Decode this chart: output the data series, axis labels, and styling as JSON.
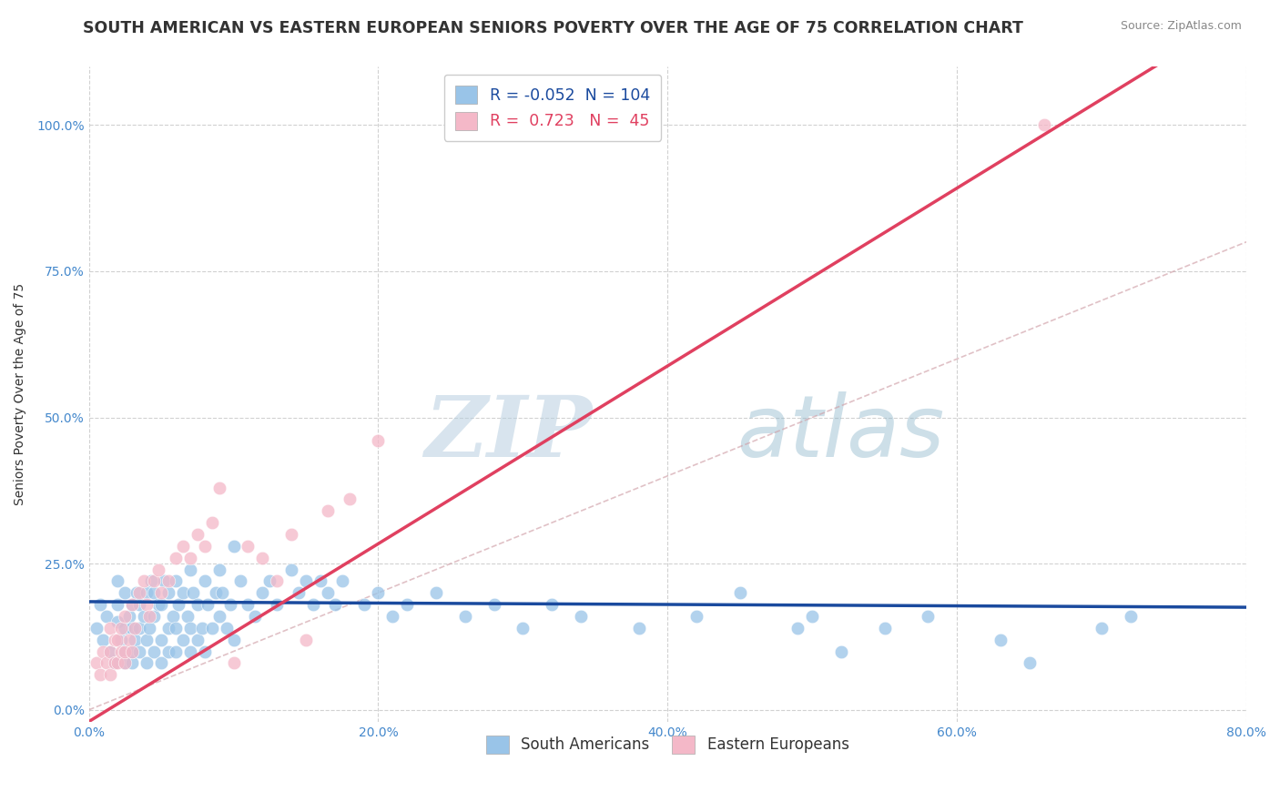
{
  "title": "SOUTH AMERICAN VS EASTERN EUROPEAN SENIORS POVERTY OVER THE AGE OF 75 CORRELATION CHART",
  "source": "Source: ZipAtlas.com",
  "ylabel": "Seniors Poverty Over the Age of 75",
  "xlim": [
    0.0,
    0.8
  ],
  "ylim": [
    -0.02,
    1.1
  ],
  "xticks": [
    0.0,
    0.2,
    0.4,
    0.6,
    0.8
  ],
  "xticklabels": [
    "0.0%",
    "20.0%",
    "40.0%",
    "60.0%",
    "80.0%"
  ],
  "yticks": [
    0.0,
    0.25,
    0.5,
    0.75,
    1.0
  ],
  "yticklabels": [
    "0.0%",
    "25.0%",
    "50.0%",
    "75.0%",
    "100.0%"
  ],
  "blue_color": "#99c4e8",
  "pink_color": "#f4b8c8",
  "blue_line_color": "#1a4a9e",
  "pink_line_color": "#e04060",
  "R_blue": -0.052,
  "N_blue": 104,
  "R_pink": 0.723,
  "N_pink": 45,
  "legend_labels": [
    "South Americans",
    "Eastern Europeans"
  ],
  "watermark_zip": "ZIP",
  "watermark_atlas": "atlas",
  "background_color": "#ffffff",
  "grid_color": "#cccccc",
  "title_fontsize": 12.5,
  "axis_label_fontsize": 10,
  "tick_fontsize": 10,
  "tick_color": "#4488cc",
  "blue_line_intercept": 0.185,
  "blue_line_slope": -0.012,
  "pink_line_intercept": -0.02,
  "pink_line_slope": 1.52,
  "blue_scatter_x": [
    0.005,
    0.008,
    0.01,
    0.012,
    0.015,
    0.018,
    0.02,
    0.02,
    0.02,
    0.022,
    0.025,
    0.025,
    0.025,
    0.025,
    0.028,
    0.03,
    0.03,
    0.03,
    0.03,
    0.032,
    0.033,
    0.035,
    0.035,
    0.035,
    0.038,
    0.04,
    0.04,
    0.04,
    0.042,
    0.043,
    0.045,
    0.045,
    0.045,
    0.048,
    0.05,
    0.05,
    0.05,
    0.052,
    0.055,
    0.055,
    0.055,
    0.058,
    0.06,
    0.06,
    0.06,
    0.062,
    0.065,
    0.065,
    0.068,
    0.07,
    0.07,
    0.07,
    0.072,
    0.075,
    0.075,
    0.078,
    0.08,
    0.08,
    0.082,
    0.085,
    0.088,
    0.09,
    0.09,
    0.092,
    0.095,
    0.098,
    0.1,
    0.1,
    0.105,
    0.11,
    0.115,
    0.12,
    0.125,
    0.13,
    0.14,
    0.145,
    0.15,
    0.155,
    0.16,
    0.165,
    0.17,
    0.175,
    0.19,
    0.2,
    0.21,
    0.22,
    0.24,
    0.26,
    0.28,
    0.3,
    0.32,
    0.34,
    0.38,
    0.42,
    0.45,
    0.49,
    0.5,
    0.52,
    0.55,
    0.58,
    0.63,
    0.65,
    0.7,
    0.72
  ],
  "blue_scatter_y": [
    0.14,
    0.18,
    0.12,
    0.16,
    0.1,
    0.08,
    0.15,
    0.18,
    0.22,
    0.12,
    0.08,
    0.1,
    0.14,
    0.2,
    0.16,
    0.08,
    0.1,
    0.14,
    0.18,
    0.12,
    0.2,
    0.1,
    0.14,
    0.18,
    0.16,
    0.08,
    0.12,
    0.2,
    0.14,
    0.22,
    0.1,
    0.16,
    0.2,
    0.18,
    0.08,
    0.12,
    0.18,
    0.22,
    0.1,
    0.14,
    0.2,
    0.16,
    0.1,
    0.14,
    0.22,
    0.18,
    0.12,
    0.2,
    0.16,
    0.1,
    0.14,
    0.24,
    0.2,
    0.12,
    0.18,
    0.14,
    0.1,
    0.22,
    0.18,
    0.14,
    0.2,
    0.16,
    0.24,
    0.2,
    0.14,
    0.18,
    0.12,
    0.28,
    0.22,
    0.18,
    0.16,
    0.2,
    0.22,
    0.18,
    0.24,
    0.2,
    0.22,
    0.18,
    0.22,
    0.2,
    0.18,
    0.22,
    0.18,
    0.2,
    0.16,
    0.18,
    0.2,
    0.16,
    0.18,
    0.14,
    0.18,
    0.16,
    0.14,
    0.16,
    0.2,
    0.14,
    0.16,
    0.1,
    0.14,
    0.16,
    0.12,
    0.08,
    0.14,
    0.16
  ],
  "pink_scatter_x": [
    0.005,
    0.008,
    0.01,
    0.012,
    0.015,
    0.015,
    0.015,
    0.018,
    0.018,
    0.02,
    0.02,
    0.022,
    0.022,
    0.025,
    0.025,
    0.025,
    0.028,
    0.03,
    0.03,
    0.032,
    0.035,
    0.038,
    0.04,
    0.042,
    0.045,
    0.048,
    0.05,
    0.055,
    0.06,
    0.065,
    0.07,
    0.075,
    0.08,
    0.085,
    0.09,
    0.1,
    0.11,
    0.12,
    0.13,
    0.14,
    0.15,
    0.165,
    0.18,
    0.2,
    0.66
  ],
  "pink_scatter_y": [
    0.08,
    0.06,
    0.1,
    0.08,
    0.06,
    0.1,
    0.14,
    0.08,
    0.12,
    0.08,
    0.12,
    0.1,
    0.14,
    0.08,
    0.1,
    0.16,
    0.12,
    0.1,
    0.18,
    0.14,
    0.2,
    0.22,
    0.18,
    0.16,
    0.22,
    0.24,
    0.2,
    0.22,
    0.26,
    0.28,
    0.26,
    0.3,
    0.28,
    0.32,
    0.38,
    0.08,
    0.28,
    0.26,
    0.22,
    0.3,
    0.12,
    0.34,
    0.36,
    0.46,
    1.0
  ]
}
